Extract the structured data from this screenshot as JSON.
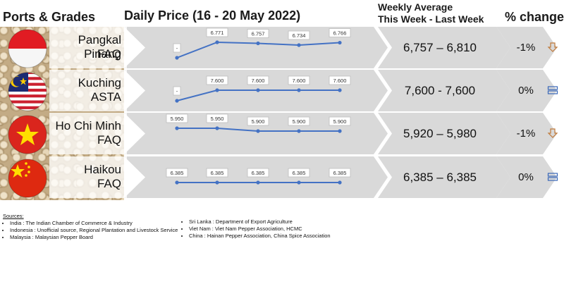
{
  "headers": {
    "ports": "Ports & Grades",
    "daily": "Daily Price (16 - 20 May 2022)",
    "weekly_line1": "Weekly Average",
    "weekly_line2": "This Week - Last Week",
    "pct": "% change"
  },
  "rows": [
    {
      "port": "Pangkal Pinang",
      "grade": "FAQ",
      "flag": "indonesia-flag-icon",
      "weekly": "6,757 – 6,810",
      "pct": "-1%",
      "trend": "down-arrow-icon",
      "trend_color": "#c07a3a"
    },
    {
      "port": "Kuching",
      "grade": "ASTA",
      "flag": "malaysia-flag-icon",
      "weekly": "7,600 - 7,600",
      "pct": "0%",
      "trend": "equal-icon",
      "trend_color": "#3a68b8"
    },
    {
      "port": "Ho Chi Minh",
      "grade": "FAQ",
      "flag": "vietnam-flag-icon",
      "weekly": "5,920 – 5,980",
      "pct": "-1%",
      "trend": "down-arrow-icon",
      "trend_color": "#c07a3a"
    },
    {
      "port": "Haikou",
      "grade": "FAQ",
      "flag": "china-flag-icon",
      "weekly": "6,385 – 6,385",
      "pct": "0%",
      "trend": "equal-icon",
      "trend_color": "#3a68b8"
    }
  ],
  "chart_data": [
    {
      "type": "line",
      "series": [
        {
          "values": [
            null,
            6771,
            6757,
            6734,
            6766
          ]
        }
      ],
      "labels": [
        "-",
        "6.771",
        "6.757",
        "6.734",
        "6.766"
      ],
      "missing_level": 0.0
    },
    {
      "type": "line",
      "series": [
        {
          "values": [
            null,
            7600,
            7600,
            7600,
            7600
          ]
        }
      ],
      "labels": [
        "-",
        "7.600",
        "7.600",
        "7.600",
        "7.600"
      ],
      "missing_level": 0.0
    },
    {
      "type": "line",
      "series": [
        {
          "values": [
            5950,
            5950,
            5900,
            5900,
            5900
          ]
        }
      ],
      "labels": [
        "5.950",
        "5.950",
        "5.900",
        "5.900",
        "5.900"
      ]
    },
    {
      "type": "line",
      "series": [
        {
          "values": [
            6385,
            6385,
            6385,
            6385,
            6385
          ]
        }
      ],
      "labels": [
        "6.385",
        "6.385",
        "6.385",
        "6.385",
        "6.385"
      ]
    }
  ],
  "colors": {
    "band": "#d9d9d9",
    "line": "#4472c4"
  },
  "sources": {
    "title": "Sources:",
    "left": [
      "India : The Indian Chamber of Commerce & Industry",
      "Indonesia : Unofficial source, Regional Plantation and Livestock Service",
      "Malaysia : Malaysian Pepper Board"
    ],
    "right": [
      "Sri Lanka : Department of Export Agriculture",
      "Viet Nam : Viet Nam Pepper Association, HCMC",
      "China : Hainan Pepper Association, China Spice Association"
    ]
  }
}
